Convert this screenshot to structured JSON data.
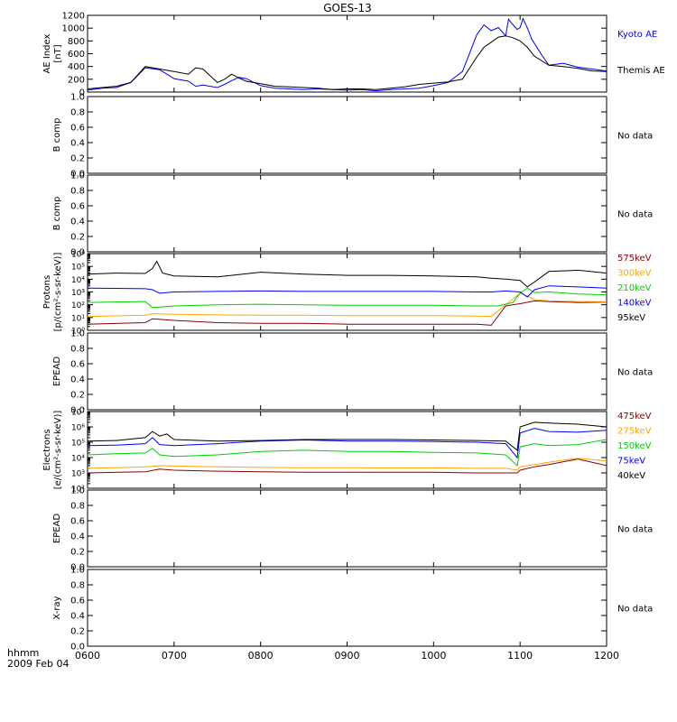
{
  "title": "GOES-13",
  "footer": {
    "line1": "hhmm",
    "line2": "2009 Feb 04"
  },
  "colors": {
    "axis": "#000000",
    "black": "#000000",
    "blue": "#0000ff",
    "green": "#00d000",
    "orange": "#ffa500",
    "darkred": "#8b0000",
    "no_data": "#000000"
  },
  "chart_data": [
    {
      "type": "line",
      "id": "ae",
      "ylabel": [
        "AE Index",
        "[nT]"
      ],
      "ylim": [
        0,
        1200
      ],
      "yticks": [
        "0",
        "200",
        "400",
        "600",
        "800",
        "1000",
        "1200"
      ],
      "xlim": [
        "0600",
        "1200"
      ],
      "series": [
        {
          "name": "Kyoto AE",
          "color": "blue",
          "x": [
            "0600",
            "0610",
            "0620",
            "0630",
            "0640",
            "0650",
            "0700",
            "0710",
            "0715",
            "0720",
            "0730",
            "0735",
            "0740",
            "0745",
            "0750",
            "0800",
            "0810",
            "0820",
            "0830",
            "0840",
            "0850",
            "0900",
            "0910",
            "0920",
            "0930",
            "0940",
            "0950",
            "1000",
            "1010",
            "1020",
            "1030",
            "1035",
            "1040",
            "1045",
            "1050",
            "1052",
            "1054",
            "1056",
            "1058",
            "1100",
            "1102",
            "1104",
            "1106",
            "1108",
            "1110",
            "1115",
            "1120",
            "1130",
            "1140",
            "1150",
            "1200"
          ],
          "y": [
            30,
            60,
            70,
            150,
            380,
            350,
            210,
            170,
            90,
            110,
            70,
            120,
            180,
            230,
            210,
            100,
            60,
            50,
            40,
            50,
            40,
            30,
            40,
            20,
            40,
            50,
            60,
            100,
            150,
            320,
            900,
            1050,
            960,
            1010,
            880,
            1140,
            1080,
            1030,
            980,
            1010,
            1150,
            1050,
            950,
            830,
            760,
            580,
            420,
            450,
            390,
            360,
            330
          ]
        },
        {
          "name": "Themis AE",
          "color": "black",
          "x": [
            "0600",
            "0610",
            "0620",
            "0630",
            "0640",
            "0650",
            "0700",
            "0710",
            "0715",
            "0720",
            "0730",
            "0735",
            "0740",
            "0745",
            "0750",
            "0800",
            "0810",
            "0820",
            "0830",
            "0840",
            "0850",
            "0900",
            "0910",
            "0920",
            "0930",
            "0940",
            "0950",
            "1000",
            "1010",
            "1020",
            "1030",
            "1035",
            "1040",
            "1045",
            "1050",
            "1055",
            "1100",
            "1105",
            "1110",
            "1120",
            "1130",
            "1140",
            "1150",
            "1200"
          ],
          "y": [
            50,
            70,
            90,
            150,
            400,
            360,
            320,
            280,
            380,
            360,
            150,
            200,
            280,
            220,
            170,
            130,
            90,
            80,
            70,
            60,
            40,
            50,
            50,
            40,
            60,
            80,
            120,
            140,
            160,
            200,
            550,
            700,
            780,
            860,
            880,
            850,
            800,
            700,
            560,
            420,
            400,
            370,
            330,
            320
          ]
        }
      ]
    },
    {
      "type": "line",
      "id": "bcomp1",
      "ylabel": [
        "B comp"
      ],
      "ylim": [
        0,
        1
      ],
      "yticks": [
        "0.0",
        "0.2",
        "0.4",
        "0.6",
        "0.8",
        "1.0"
      ],
      "no_data": "No data",
      "series": []
    },
    {
      "type": "line",
      "id": "bcomp2",
      "ylabel": [
        "B comp"
      ],
      "ylim": [
        0,
        1
      ],
      "yticks": [
        "0.0",
        "0.2",
        "0.4",
        "0.6",
        "0.8",
        "1.0"
      ],
      "no_data": "No data",
      "series": []
    },
    {
      "type": "line",
      "id": "protons",
      "scale": "log",
      "ylabel": [
        "Protons",
        "[p/(cm²-s-sr-keV)]"
      ],
      "ylim": [
        1,
        1000000
      ],
      "yticks": [
        "10⁰",
        "10¹",
        "10²",
        "10³",
        "10⁴",
        "10⁵",
        "10⁶"
      ],
      "series": [
        {
          "name": "575keV",
          "color": "darkred",
          "x": [
            "0600",
            "0640",
            "0645",
            "0700",
            "0730",
            "0800",
            "0830",
            "0900",
            "0930",
            "1000",
            "1030",
            "1040",
            "1050",
            "1100",
            "1110",
            "1120",
            "1140",
            "1200"
          ],
          "y": [
            3,
            4,
            8,
            6,
            4,
            3.5,
            3.5,
            3,
            3,
            3,
            3,
            2.5,
            80,
            120,
            200,
            180,
            150,
            160
          ]
        },
        {
          "name": "300keV",
          "color": "orange",
          "x": [
            "0600",
            "0640",
            "0645",
            "0700",
            "0730",
            "0800",
            "0830",
            "0900",
            "0930",
            "1000",
            "1030",
            "1040",
            "1050",
            "1100",
            "1105",
            "1110",
            "1120",
            "1140",
            "1200"
          ],
          "y": [
            12,
            15,
            20,
            18,
            16,
            15,
            15,
            14,
            14,
            14,
            13,
            12,
            100,
            800,
            500,
            250,
            200,
            180,
            170
          ]
        },
        {
          "name": "210keV",
          "color": "green",
          "x": [
            "0600",
            "0640",
            "0645",
            "0700",
            "0730",
            "0800",
            "0830",
            "0900",
            "0930",
            "1000",
            "1030",
            "1045",
            "1055",
            "1100",
            "1105",
            "1110",
            "1120",
            "1140",
            "1200"
          ],
          "y": [
            150,
            180,
            60,
            80,
            100,
            110,
            100,
            90,
            90,
            90,
            80,
            80,
            150,
            800,
            2000,
            900,
            1000,
            700,
            600
          ]
        },
        {
          "name": "140keV",
          "color": "blue",
          "x": [
            "0600",
            "0640",
            "0645",
            "0650",
            "0700",
            "0730",
            "0800",
            "0830",
            "0900",
            "0930",
            "1000",
            "1030",
            "1040",
            "1050",
            "1100",
            "1105",
            "1110",
            "1120",
            "1140",
            "1200"
          ],
          "y": [
            2000,
            1800,
            1500,
            800,
            1000,
            1100,
            1200,
            1100,
            1100,
            1100,
            1100,
            1000,
            1000,
            1200,
            1000,
            400,
            1500,
            3000,
            2500,
            2000
          ]
        },
        {
          "name": "95keV",
          "color": "black",
          "x": [
            "0600",
            "0620",
            "0640",
            "0645",
            "0648",
            "0652",
            "0700",
            "0730",
            "0800",
            "0830",
            "0900",
            "0930",
            "1000",
            "1030",
            "1040",
            "1050",
            "1100",
            "1105",
            "1110",
            "1120",
            "1140",
            "1200"
          ],
          "y": [
            25000,
            30000,
            28000,
            70000,
            250000,
            30000,
            18000,
            15000,
            35000,
            25000,
            20000,
            20000,
            18000,
            15000,
            12000,
            10000,
            8000,
            2500,
            6000,
            40000,
            50000,
            30000
          ]
        }
      ]
    },
    {
      "type": "line",
      "id": "epead1",
      "ylabel": [
        "EPEAD"
      ],
      "ylim": [
        0,
        1
      ],
      "yticks": [
        "0.0",
        "0.2",
        "0.4",
        "0.6",
        "0.8",
        "1.0"
      ],
      "no_data": "No data",
      "series": []
    },
    {
      "type": "line",
      "id": "electrons",
      "scale": "log",
      "ylabel": [
        "Electrons",
        "[e/(cm²-s-sr-keV)]"
      ],
      "ylim": [
        100,
        10000000
      ],
      "yticks": [
        "10²",
        "10³",
        "10⁴",
        "10⁵",
        "10⁶",
        "10⁷"
      ],
      "series": [
        {
          "name": "475keV",
          "color": "darkred",
          "x": [
            "0600",
            "0620",
            "0640",
            "0650",
            "0700",
            "0730",
            "0800",
            "0830",
            "0900",
            "0930",
            "1000",
            "1030",
            "1050",
            "1058",
            "1100",
            "1110",
            "1120",
            "1140",
            "1200"
          ],
          "y": [
            1000,
            1100,
            1200,
            1800,
            1500,
            1300,
            1200,
            1100,
            1100,
            1100,
            1100,
            1000,
            1000,
            1000,
            1500,
            2500,
            3500,
            8000,
            3000
          ]
        },
        {
          "name": "275keV",
          "color": "orange",
          "x": [
            "0600",
            "0620",
            "0640",
            "0650",
            "0700",
            "0730",
            "0800",
            "0830",
            "0900",
            "0930",
            "1000",
            "1030",
            "1050",
            "1058",
            "1100",
            "1110",
            "1120",
            "1140",
            "1200"
          ],
          "y": [
            2000,
            2200,
            2500,
            3000,
            2800,
            2500,
            2300,
            2200,
            2200,
            2100,
            2100,
            2000,
            2000,
            1500,
            2500,
            3500,
            5000,
            9000,
            6000
          ]
        },
        {
          "name": "150keV",
          "color": "green",
          "x": [
            "0600",
            "0620",
            "0640",
            "0645",
            "0650",
            "0700",
            "0730",
            "0800",
            "0830",
            "0900",
            "0930",
            "1000",
            "1030",
            "1050",
            "1058",
            "1100",
            "1110",
            "1120",
            "1140",
            "1200"
          ],
          "y": [
            15000,
            18000,
            20000,
            40000,
            15000,
            12000,
            15000,
            25000,
            30000,
            25000,
            25000,
            22000,
            20000,
            15000,
            3000,
            50000,
            80000,
            60000,
            70000,
            150000
          ]
        },
        {
          "name": "75keV",
          "color": "blue",
          "x": [
            "0600",
            "0620",
            "0640",
            "0645",
            "0650",
            "0700",
            "0730",
            "0800",
            "0830",
            "0900",
            "0930",
            "1000",
            "1030",
            "1050",
            "1058",
            "1100",
            "1110",
            "1120",
            "1140",
            "1200"
          ],
          "y": [
            60000,
            65000,
            80000,
            200000,
            70000,
            60000,
            80000,
            120000,
            140000,
            120000,
            120000,
            110000,
            100000,
            80000,
            10000,
            400000,
            800000,
            500000,
            450000,
            600000
          ]
        },
        {
          "name": "40keV",
          "color": "black",
          "x": [
            "0600",
            "0620",
            "0640",
            "0645",
            "0650",
            "0655",
            "0700",
            "0730",
            "0800",
            "0830",
            "0900",
            "0930",
            "1000",
            "1030",
            "1050",
            "1058",
            "1100",
            "1110",
            "1120",
            "1140",
            "1200"
          ],
          "y": [
            120000,
            130000,
            200000,
            500000,
            250000,
            350000,
            150000,
            120000,
            130000,
            150000,
            150000,
            150000,
            140000,
            130000,
            120000,
            30000,
            1000000,
            2000000,
            1800000,
            1500000,
            1000000
          ]
        }
      ]
    },
    {
      "type": "line",
      "id": "epead2",
      "ylabel": [
        "EPEAD"
      ],
      "ylim": [
        0,
        1
      ],
      "yticks": [
        "0.0",
        "0.2",
        "0.4",
        "0.6",
        "0.8",
        "1.0"
      ],
      "no_data": "No data",
      "series": []
    },
    {
      "type": "line",
      "id": "xray",
      "ylabel": [
        "X-ray"
      ],
      "ylim": [
        0,
        1
      ],
      "yticks": [
        "0.0",
        "0.2",
        "0.4",
        "0.6",
        "0.8",
        "1.0"
      ],
      "xticks": [
        "0600",
        "0700",
        "0800",
        "0900",
        "1000",
        "1100",
        "1200"
      ],
      "no_data": "No data",
      "series": []
    }
  ]
}
